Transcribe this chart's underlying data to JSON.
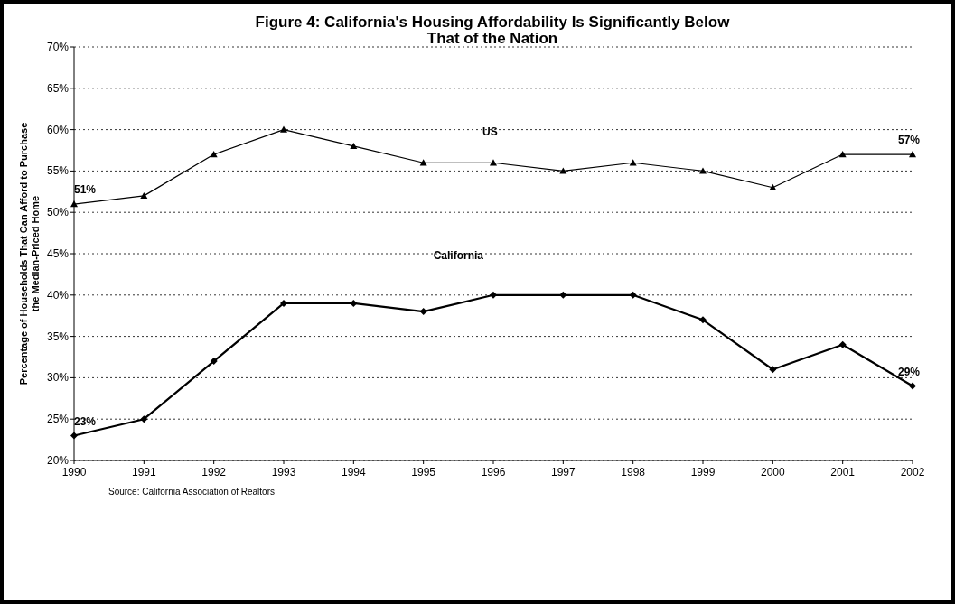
{
  "chart_data": {
    "type": "line",
    "title": "Figure 4: California's Housing Affordability Is Significantly Below That of the Nation",
    "ylabel": "Percentage of Households That Can Afford to Purchase the Median-Priced Home",
    "x": [
      1990,
      1991,
      1992,
      1993,
      1994,
      1995,
      1996,
      1997,
      1998,
      1999,
      2000,
      2001,
      2002
    ],
    "xlim": [
      1990,
      2002
    ],
    "xticks": [
      1990,
      1991,
      1992,
      1993,
      1994,
      1995,
      1996,
      1997,
      1998,
      1999,
      2000,
      2001,
      2002
    ],
    "ylim": [
      20,
      70
    ],
    "yticks": [
      {
        "value": 20,
        "label": "20%"
      },
      {
        "value": 25,
        "label": "25%"
      },
      {
        "value": 30,
        "label": "30%"
      },
      {
        "value": 35,
        "label": "35%"
      },
      {
        "value": 40,
        "label": "40%"
      },
      {
        "value": 45,
        "label": "45%"
      },
      {
        "value": 50,
        "label": "50%"
      },
      {
        "value": 55,
        "label": "55%"
      },
      {
        "value": 60,
        "label": "60%"
      },
      {
        "value": 65,
        "label": "65%"
      },
      {
        "value": 70,
        "label": "70%"
      }
    ],
    "grid": "y",
    "series": [
      {
        "name": "US",
        "color": "#000000",
        "marker": "triangle",
        "values": [
          51,
          52,
          57,
          60,
          58,
          56,
          56,
          55,
          56,
          55,
          53,
          57,
          57
        ],
        "value_labels": [
          "51%",
          null,
          null,
          null,
          null,
          null,
          null,
          null,
          null,
          null,
          null,
          null,
          "57%"
        ]
      },
      {
        "name": "California",
        "color": "#000000",
        "marker": "diamond",
        "values": [
          23,
          25,
          32,
          39,
          39,
          38,
          40,
          40,
          40,
          37,
          31,
          34,
          29
        ],
        "value_labels": [
          "23%",
          null,
          null,
          null,
          null,
          null,
          null,
          null,
          null,
          null,
          null,
          null,
          "29%"
        ]
      }
    ],
    "annotations": [
      "Source: California Association of Realtors"
    ]
  }
}
